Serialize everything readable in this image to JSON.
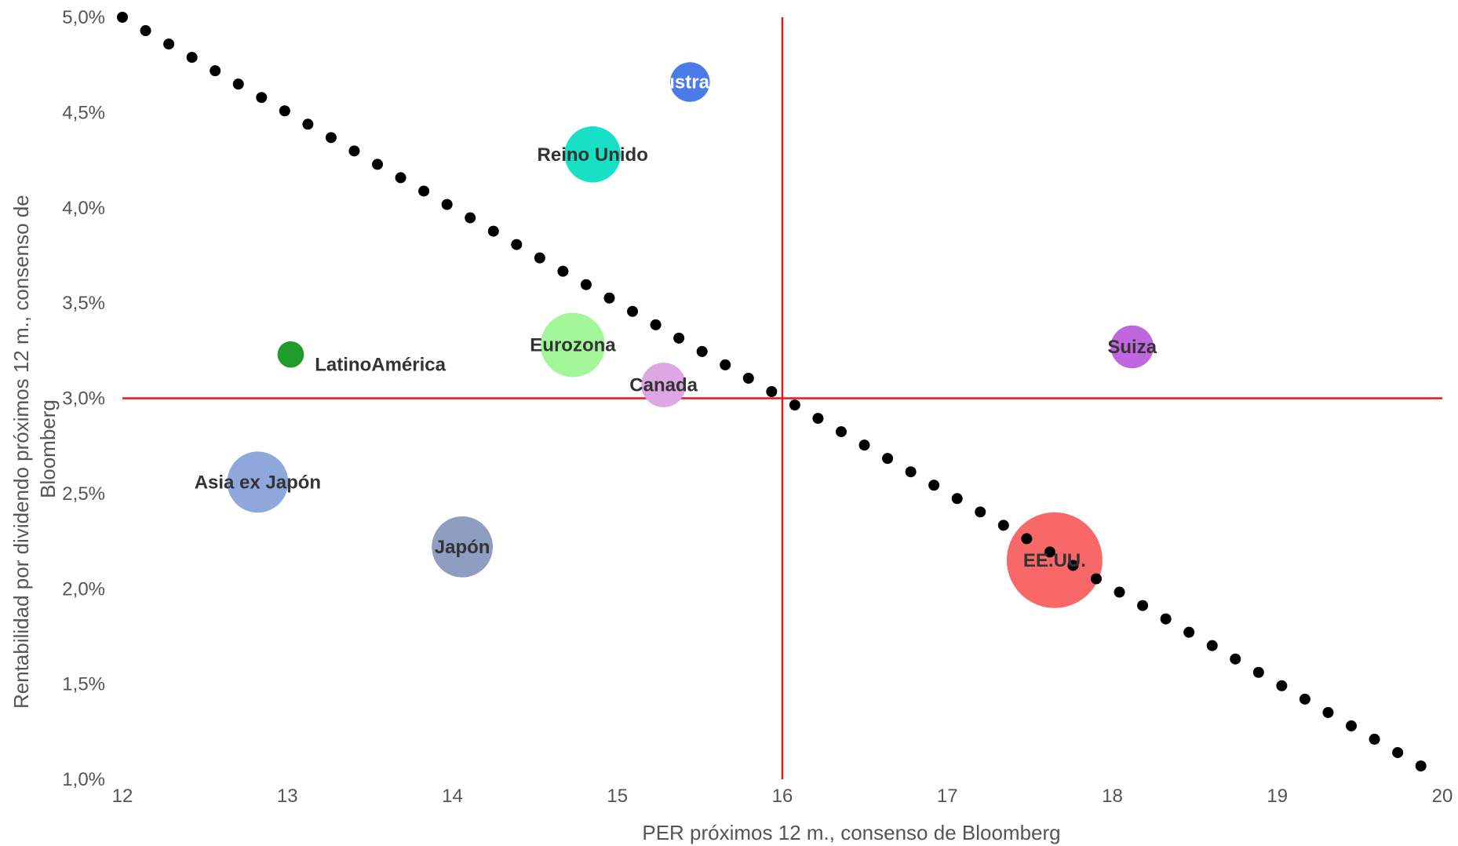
{
  "chart_data": {
    "type": "scatter",
    "subtype": "bubble",
    "xlabel": "PER próximos 12 m., consenso de Bloomberg",
    "ylabel_lines": [
      "Rentabilidad por dividendo  próximos 12 m., consenso de",
      "Bloomberg"
    ],
    "xlim": [
      12,
      20
    ],
    "ylim": [
      1.0,
      5.0
    ],
    "x_ticks": [
      12,
      13,
      14,
      15,
      16,
      17,
      18,
      19,
      20
    ],
    "x_tick_labels": [
      "12",
      "13",
      "14",
      "15",
      "16",
      "17",
      "18",
      "19",
      "20"
    ],
    "y_ticks": [
      1.0,
      1.5,
      2.0,
      2.5,
      3.0,
      3.5,
      4.0,
      4.5,
      5.0
    ],
    "y_tick_labels": [
      "1,0%",
      "1,5%",
      "2,0%",
      "2,5%",
      "3,0%",
      "3,5%",
      "4,0%",
      "4,5%",
      "5,0%"
    ],
    "grid": false,
    "reference_lines": {
      "vertical_x": 16,
      "horizontal_y": 3.0,
      "color": "#e31a1c"
    },
    "trend_line": {
      "style": "dotted",
      "color": "#000000",
      "from": [
        12,
        5.0
      ],
      "to": [
        19.87,
        1.07
      ]
    },
    "bubbles": [
      {
        "label": "Australia",
        "x": 15.44,
        "y": 4.66,
        "size": 0.24,
        "color": "#4a7be8",
        "label_color": "#ffffff",
        "label_position": "center"
      },
      {
        "label": "Reino Unido",
        "x": 14.85,
        "y": 4.28,
        "size": 0.34,
        "color": "#17e0c6",
        "label_color": "#333333",
        "label_position": "center"
      },
      {
        "label": "Eurozona",
        "x": 14.73,
        "y": 3.28,
        "size": 0.39,
        "color": "#a3f59a",
        "label_color": "#333333",
        "label_position": "center"
      },
      {
        "label": "Canada",
        "x": 15.28,
        "y": 3.07,
        "size": 0.27,
        "color": "#dfa6e6",
        "label_color": "#333333",
        "label_position": "center"
      },
      {
        "label": "LatinoAmérica",
        "x": 13.02,
        "y": 3.23,
        "size": 0.16,
        "color": "#1f9b2c",
        "label_color": "#333333",
        "label_position": "below-right"
      },
      {
        "label": "Asia ex Japón",
        "x": 12.82,
        "y": 2.56,
        "size": 0.37,
        "color": "#8ea8dd",
        "label_color": "#333333",
        "label_position": "center"
      },
      {
        "label": "Japón",
        "x": 14.06,
        "y": 2.22,
        "size": 0.37,
        "color": "#8e9dc0",
        "label_color": "#333333",
        "label_position": "center"
      },
      {
        "label": "Suiza",
        "x": 18.12,
        "y": 3.27,
        "size": 0.26,
        "color": "#c066df",
        "label_color": "#333333",
        "label_position": "center"
      },
      {
        "label": "EE.UU.",
        "x": 17.65,
        "y": 2.15,
        "size": 0.58,
        "color": "#f86868",
        "label_color": "#333333",
        "label_position": "center"
      }
    ]
  }
}
